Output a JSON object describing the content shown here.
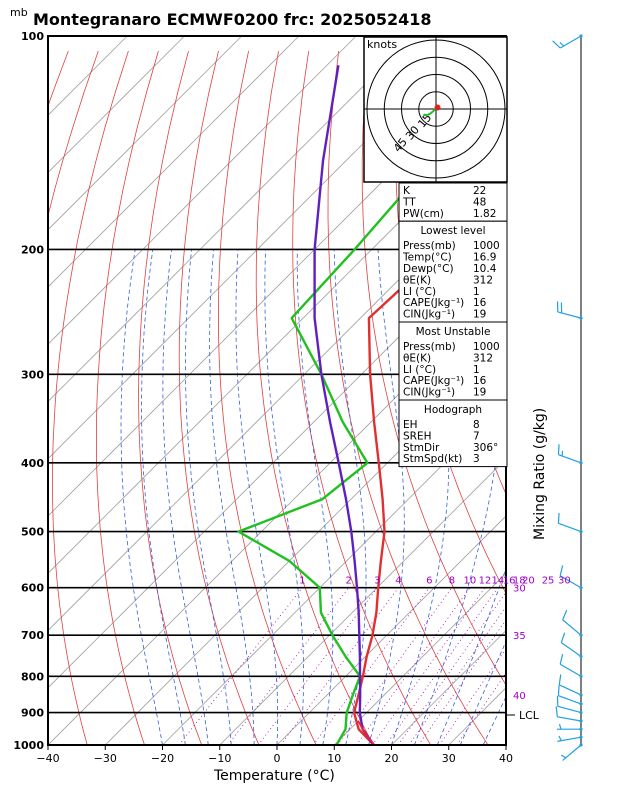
{
  "title": "Montegranaro ECMWF0200  frc: 2025052418",
  "pressure_unit": "mb",
  "xlabel": "Temperature (°C)",
  "right_label": "Mixing Ratio (g/kg)",
  "lcl_label": "LCL",
  "hodograph": {
    "unit_label": "knots",
    "ring_labels": [
      "15",
      "30",
      "45"
    ]
  },
  "indices": {
    "general": [
      {
        "name": "K",
        "value": "22"
      },
      {
        "name": "TT",
        "value": "48"
      },
      {
        "name": "PW(cm)",
        "value": "1.82"
      }
    ],
    "lowest_level": {
      "header": "Lowest level",
      "rows": [
        {
          "name": "Press(mb)",
          "value": "1000"
        },
        {
          "name": "Temp(°C)",
          "value": "16.9"
        },
        {
          "name": "Dewp(°C)",
          "value": "10.4"
        },
        {
          "name": "θE(K)",
          "value": "312"
        },
        {
          "name": "LI (°C)",
          "value": "1"
        },
        {
          "name": "CAPE(Jkg⁻¹)",
          "value": "16"
        },
        {
          "name": "CIN(Jkg⁻¹)",
          "value": "19"
        }
      ]
    },
    "most_unstable": {
      "header": "Most Unstable",
      "rows": [
        {
          "name": "Press(mb)",
          "value": "1000"
        },
        {
          "name": "θE(K)",
          "value": "312"
        },
        {
          "name": "LI (°C)",
          "value": "1"
        },
        {
          "name": "CAPE(Jkg⁻¹)",
          "value": "16"
        },
        {
          "name": "CIN(Jkg⁻¹)",
          "value": "19"
        }
      ]
    },
    "hodograph_params": {
      "header": "Hodograph",
      "rows": [
        {
          "name": "EH",
          "value": "8"
        },
        {
          "name": "SREH",
          "value": "7"
        },
        {
          "name": "StmDir",
          "value": "306°"
        },
        {
          "name": "StmSpd(kt)",
          "value": "3"
        }
      ]
    }
  },
  "colors": {
    "temperature": "#e03030",
    "dewpoint": "#20c020",
    "parcel": "#6020c0",
    "isotherm": "#a0a0a0",
    "dry_adiabat": "#e04040",
    "moist_adiabat": "#3060e0",
    "mixing_ratio": "#b000b0",
    "wind": "#20a0e0",
    "lcl_parcel": "#e8203a"
  },
  "chart_data": {
    "type": "line",
    "title": "Montegranaro ECMWF0200  frc: 2025052418",
    "xlabel": "Temperature (°C)",
    "ylabel": "mb",
    "xlim": [
      -40,
      40
    ],
    "ylim": [
      1000,
      100
    ],
    "y_scale": "log",
    "x_ticks": [
      -40,
      -30,
      -20,
      -10,
      0,
      10,
      20,
      30,
      40
    ],
    "y_ticks": [
      100,
      200,
      300,
      400,
      500,
      600,
      700,
      800,
      900,
      1000
    ],
    "mixing_ratio_labels": [
      "1",
      "2",
      "3",
      "4",
      "6",
      "8",
      "10",
      "12",
      "14",
      "16",
      "18",
      "20",
      "25",
      "30"
    ],
    "theta_e_labels": [
      "30",
      "35",
      "40"
    ],
    "series": [
      {
        "name": "temperature",
        "points": [
          [
            1000,
            16.9
          ],
          [
            950,
            11.5
          ],
          [
            900,
            7.8
          ],
          [
            850,
            5.5
          ],
          [
            800,
            3.0
          ],
          [
            750,
            0.2
          ],
          [
            700,
            -2.5
          ],
          [
            650,
            -5.8
          ],
          [
            600,
            -9.8
          ],
          [
            550,
            -14.0
          ],
          [
            500,
            -18.5
          ],
          [
            450,
            -24.5
          ],
          [
            400,
            -31.5
          ],
          [
            350,
            -39.5
          ],
          [
            300,
            -48.5
          ],
          [
            250,
            -58.5
          ],
          [
            200,
            -57.5
          ],
          [
            150,
            -58.0
          ],
          [
            100,
            -58.5
          ]
        ]
      },
      {
        "name": "dewpoint",
        "points": [
          [
            1000,
            10.4
          ],
          [
            950,
            9.2
          ],
          [
            900,
            6.5
          ],
          [
            850,
            4.5
          ],
          [
            800,
            2.5
          ],
          [
            750,
            -3.5
          ],
          [
            700,
            -9.5
          ],
          [
            650,
            -15.5
          ],
          [
            600,
            -20.0
          ],
          [
            550,
            -30.0
          ],
          [
            500,
            -44.0
          ],
          [
            450,
            -35.0
          ],
          [
            400,
            -33.5
          ],
          [
            350,
            -45.0
          ],
          [
            300,
            -57.0
          ],
          [
            250,
            -72.0
          ],
          [
            200,
            -73.0
          ],
          [
            150,
            -75.0
          ],
          [
            100,
            -78.0
          ]
        ]
      },
      {
        "name": "parcel",
        "points": [
          [
            1000,
            16.9
          ],
          [
            950,
            12.2
          ],
          [
            900,
            8.8
          ],
          [
            850,
            5.8
          ],
          [
            800,
            2.5
          ],
          [
            750,
            -1.0
          ],
          [
            700,
            -4.8
          ],
          [
            650,
            -8.9
          ],
          [
            600,
            -13.5
          ],
          [
            550,
            -18.6
          ],
          [
            500,
            -24.3
          ],
          [
            450,
            -30.9
          ],
          [
            400,
            -38.5
          ],
          [
            350,
            -47.2
          ],
          [
            300,
            -57.0
          ],
          [
            250,
            -68.0
          ],
          [
            200,
            -80.0
          ],
          [
            150,
            -94.0
          ],
          [
            110,
            -108.0
          ]
        ]
      },
      {
        "name": "hodograph",
        "points": [
          [
            -0.5,
            0.0
          ],
          [
            -2.5,
            -2.0
          ],
          [
            -5.0,
            -4.0
          ],
          [
            -7.0,
            -5.0
          ],
          [
            -11.0,
            -5.5
          ]
        ]
      }
    ],
    "wind_barbs": [
      {
        "p": 1000,
        "dir": 230,
        "spd": 3
      },
      {
        "p": 975,
        "dir": 260,
        "spd": 5
      },
      {
        "p": 950,
        "dir": 270,
        "spd": 5
      },
      {
        "p": 925,
        "dir": 280,
        "spd": 8
      },
      {
        "p": 900,
        "dir": 285,
        "spd": 10
      },
      {
        "p": 875,
        "dir": 290,
        "spd": 10
      },
      {
        "p": 850,
        "dir": 295,
        "spd": 10
      },
      {
        "p": 800,
        "dir": 300,
        "spd": 10
      },
      {
        "p": 750,
        "dir": 305,
        "spd": 10
      },
      {
        "p": 700,
        "dir": 310,
        "spd": 10
      },
      {
        "p": 600,
        "dir": 300,
        "spd": 10
      },
      {
        "p": 500,
        "dir": 290,
        "spd": 10
      },
      {
        "p": 400,
        "dir": 290,
        "spd": 15
      },
      {
        "p": 250,
        "dir": 285,
        "spd": 20
      },
      {
        "p": 100,
        "dir": 240,
        "spd": 15
      }
    ]
  }
}
